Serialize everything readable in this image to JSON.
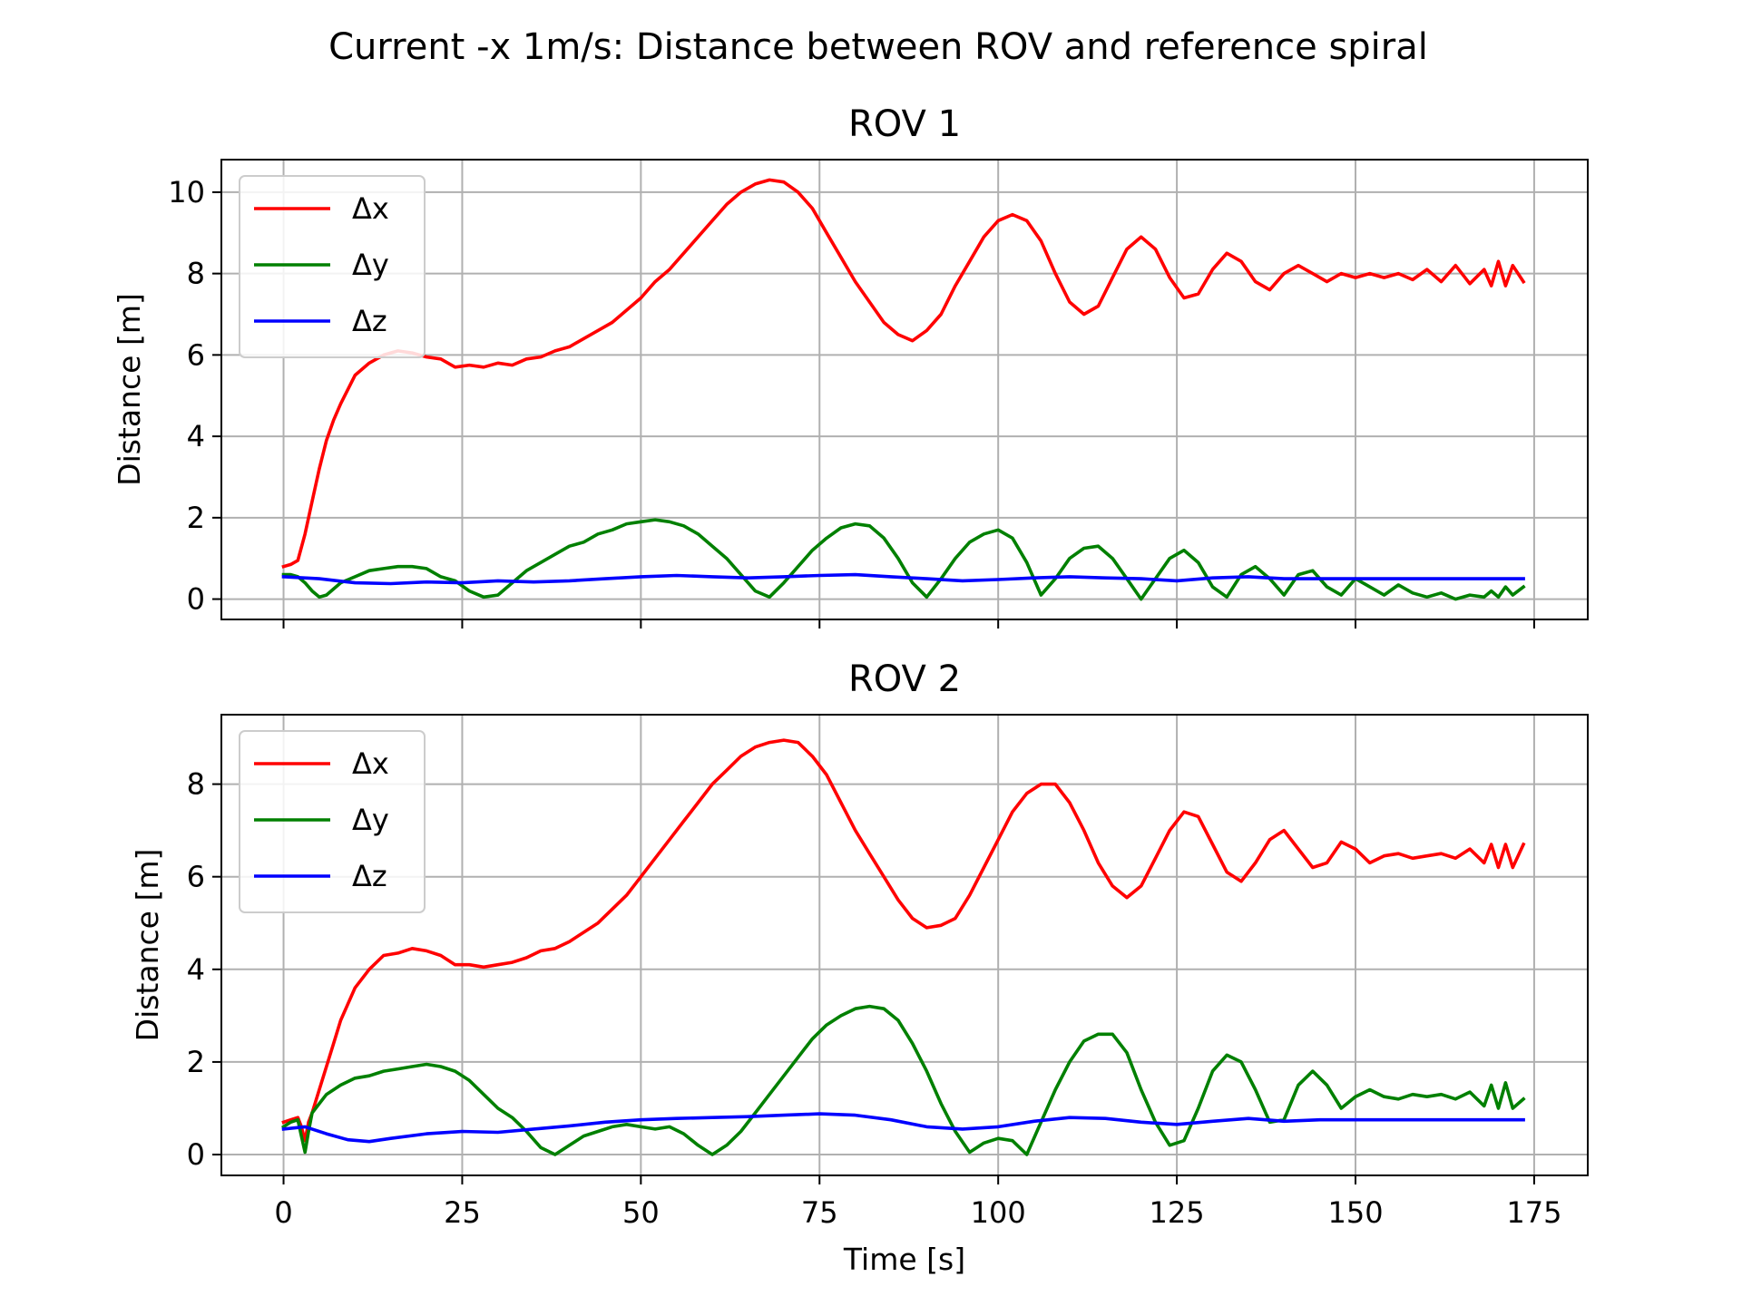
{
  "figure": {
    "suptitle": "Current -x 1m/s: Distance between ROV and reference spiral"
  },
  "chart_data": [
    {
      "type": "line",
      "title": "ROV 1",
      "xlabel": "",
      "ylabel": "Distance [m]",
      "xlim": [
        -8.7,
        182.5
      ],
      "ylim": [
        -0.5,
        10.8
      ],
      "xticks": [
        0,
        25,
        50,
        75,
        100,
        125,
        150,
        175
      ],
      "xtick_labels_visible": false,
      "yticks": [
        0,
        2,
        4,
        6,
        8,
        10
      ],
      "grid": true,
      "legend": "top-left",
      "series": [
        {
          "name": "Δx",
          "color": "#ff0000",
          "x": [
            0,
            1,
            2,
            3,
            4,
            5,
            6,
            7,
            8,
            10,
            12,
            14,
            16,
            18,
            20,
            22,
            24,
            26,
            28,
            30,
            32,
            34,
            36,
            38,
            40,
            42,
            44,
            46,
            48,
            50,
            52,
            54,
            56,
            58,
            60,
            62,
            64,
            66,
            68,
            70,
            72,
            74,
            76,
            78,
            80,
            82,
            84,
            86,
            88,
            90,
            92,
            94,
            96,
            98,
            100,
            102,
            104,
            106,
            108,
            110,
            112,
            114,
            116,
            118,
            120,
            122,
            124,
            126,
            128,
            130,
            132,
            134,
            136,
            138,
            140,
            142,
            144,
            146,
            148,
            150,
            152,
            154,
            156,
            158,
            160,
            162,
            164,
            166,
            168,
            169,
            170,
            171,
            172,
            173.5
          ],
          "values": [
            0.8,
            0.85,
            0.95,
            1.6,
            2.4,
            3.2,
            3.9,
            4.4,
            4.8,
            5.5,
            5.8,
            6.0,
            6.1,
            6.05,
            5.95,
            5.9,
            5.7,
            5.75,
            5.7,
            5.8,
            5.75,
            5.9,
            5.95,
            6.1,
            6.2,
            6.4,
            6.6,
            6.8,
            7.1,
            7.4,
            7.8,
            8.1,
            8.5,
            8.9,
            9.3,
            9.7,
            10.0,
            10.2,
            10.3,
            10.25,
            10.0,
            9.6,
            9.0,
            8.4,
            7.8,
            7.3,
            6.8,
            6.5,
            6.35,
            6.6,
            7.0,
            7.7,
            8.3,
            8.9,
            9.3,
            9.45,
            9.3,
            8.8,
            8.0,
            7.3,
            7.0,
            7.2,
            7.9,
            8.6,
            8.9,
            8.6,
            7.9,
            7.4,
            7.5,
            8.1,
            8.5,
            8.3,
            7.8,
            7.6,
            8.0,
            8.2,
            8.0,
            7.8,
            8.0,
            7.9,
            8.0,
            7.9,
            8.0,
            7.85,
            8.1,
            7.8,
            8.2,
            7.75,
            8.1,
            7.7,
            8.3,
            7.7,
            8.2,
            7.8
          ]
        },
        {
          "name": "Δy",
          "color": "#008000",
          "x": [
            0,
            1,
            2,
            3,
            4,
            5,
            6,
            8,
            10,
            12,
            14,
            16,
            18,
            20,
            22,
            24,
            26,
            28,
            30,
            32,
            34,
            36,
            38,
            40,
            42,
            44,
            46,
            48,
            50,
            52,
            54,
            56,
            58,
            60,
            62,
            64,
            66,
            68,
            70,
            72,
            74,
            76,
            78,
            80,
            82,
            84,
            86,
            88,
            90,
            92,
            94,
            96,
            98,
            100,
            102,
            104,
            106,
            108,
            110,
            112,
            114,
            116,
            118,
            120,
            122,
            124,
            126,
            128,
            130,
            132,
            134,
            136,
            138,
            140,
            142,
            144,
            146,
            148,
            150,
            152,
            154,
            156,
            158,
            160,
            162,
            164,
            166,
            168,
            169,
            170,
            171,
            172,
            173.5
          ],
          "values": [
            0.6,
            0.6,
            0.55,
            0.4,
            0.2,
            0.05,
            0.1,
            0.4,
            0.55,
            0.7,
            0.75,
            0.8,
            0.8,
            0.75,
            0.55,
            0.45,
            0.2,
            0.05,
            0.1,
            0.4,
            0.7,
            0.9,
            1.1,
            1.3,
            1.4,
            1.6,
            1.7,
            1.85,
            1.9,
            1.95,
            1.9,
            1.8,
            1.6,
            1.3,
            1.0,
            0.6,
            0.2,
            0.05,
            0.4,
            0.8,
            1.2,
            1.5,
            1.75,
            1.85,
            1.8,
            1.5,
            1.0,
            0.4,
            0.05,
            0.5,
            1.0,
            1.4,
            1.6,
            1.7,
            1.5,
            0.9,
            0.1,
            0.5,
            1.0,
            1.25,
            1.3,
            1.0,
            0.5,
            0.0,
            0.5,
            1.0,
            1.2,
            0.9,
            0.3,
            0.05,
            0.6,
            0.8,
            0.5,
            0.1,
            0.6,
            0.7,
            0.3,
            0.1,
            0.5,
            0.3,
            0.1,
            0.35,
            0.15,
            0.05,
            0.15,
            0.0,
            0.1,
            0.05,
            0.2,
            0.05,
            0.3,
            0.1,
            0.3
          ]
        },
        {
          "name": "Δz",
          "color": "#0000ff",
          "x": [
            0,
            5,
            10,
            15,
            20,
            25,
            30,
            35,
            40,
            45,
            50,
            55,
            60,
            65,
            70,
            75,
            80,
            85,
            90,
            95,
            100,
            105,
            110,
            115,
            120,
            125,
            130,
            135,
            140,
            145,
            150,
            155,
            160,
            165,
            170,
            173.5
          ],
          "values": [
            0.55,
            0.5,
            0.4,
            0.38,
            0.42,
            0.4,
            0.45,
            0.42,
            0.45,
            0.5,
            0.55,
            0.58,
            0.55,
            0.52,
            0.55,
            0.58,
            0.6,
            0.55,
            0.5,
            0.45,
            0.48,
            0.52,
            0.55,
            0.52,
            0.5,
            0.45,
            0.52,
            0.55,
            0.5,
            0.5,
            0.5,
            0.5,
            0.5,
            0.5,
            0.5,
            0.5
          ]
        }
      ]
    },
    {
      "type": "line",
      "title": "ROV 2",
      "xlabel": "Time [s]",
      "ylabel": "Distance [m]",
      "xlim": [
        -8.7,
        182.5
      ],
      "ylim": [
        -0.45,
        9.5
      ],
      "xticks": [
        0,
        25,
        50,
        75,
        100,
        125,
        150,
        175
      ],
      "xtick_labels_visible": true,
      "yticks": [
        0,
        2,
        4,
        6,
        8
      ],
      "grid": true,
      "legend": "top-left",
      "series": [
        {
          "name": "Δx",
          "color": "#ff0000",
          "x": [
            0,
            1,
            2,
            2.5,
            3,
            3.5,
            4,
            5,
            6,
            7,
            8,
            10,
            12,
            14,
            16,
            18,
            20,
            22,
            24,
            26,
            28,
            30,
            32,
            34,
            36,
            38,
            40,
            42,
            44,
            46,
            48,
            50,
            52,
            54,
            56,
            58,
            60,
            62,
            64,
            66,
            68,
            70,
            72,
            74,
            76,
            78,
            80,
            82,
            84,
            86,
            88,
            90,
            92,
            94,
            96,
            98,
            100,
            102,
            104,
            106,
            108,
            110,
            112,
            114,
            116,
            118,
            120,
            122,
            124,
            126,
            128,
            130,
            132,
            134,
            136,
            138,
            140,
            142,
            144,
            146,
            148,
            150,
            152,
            154,
            156,
            158,
            160,
            162,
            164,
            166,
            168,
            169,
            170,
            171,
            172,
            173.5
          ],
          "values": [
            0.7,
            0.75,
            0.8,
            0.6,
            0.3,
            0.7,
            0.9,
            1.4,
            1.9,
            2.4,
            2.9,
            3.6,
            4.0,
            4.3,
            4.35,
            4.45,
            4.4,
            4.3,
            4.1,
            4.1,
            4.05,
            4.1,
            4.15,
            4.25,
            4.4,
            4.45,
            4.6,
            4.8,
            5.0,
            5.3,
            5.6,
            6.0,
            6.4,
            6.8,
            7.2,
            7.6,
            8.0,
            8.3,
            8.6,
            8.8,
            8.9,
            8.95,
            8.9,
            8.6,
            8.2,
            7.6,
            7.0,
            6.5,
            6.0,
            5.5,
            5.1,
            4.9,
            4.95,
            5.1,
            5.6,
            6.2,
            6.8,
            7.4,
            7.8,
            8.0,
            8.0,
            7.6,
            7.0,
            6.3,
            5.8,
            5.55,
            5.8,
            6.4,
            7.0,
            7.4,
            7.3,
            6.7,
            6.1,
            5.9,
            6.3,
            6.8,
            7.0,
            6.6,
            6.2,
            6.3,
            6.75,
            6.6,
            6.3,
            6.45,
            6.5,
            6.4,
            6.45,
            6.5,
            6.4,
            6.6,
            6.3,
            6.7,
            6.2,
            6.7,
            6.2,
            6.7
          ]
        },
        {
          "name": "Δy",
          "color": "#008000",
          "x": [
            0,
            1,
            2,
            2.5,
            3,
            3.5,
            4,
            5,
            6,
            8,
            10,
            12,
            14,
            16,
            18,
            20,
            22,
            24,
            26,
            28,
            30,
            32,
            34,
            36,
            38,
            40,
            42,
            44,
            46,
            48,
            50,
            52,
            54,
            56,
            58,
            60,
            62,
            64,
            66,
            68,
            70,
            72,
            74,
            76,
            78,
            80,
            82,
            84,
            86,
            88,
            90,
            92,
            94,
            96,
            98,
            100,
            102,
            104,
            106,
            108,
            110,
            112,
            114,
            116,
            118,
            120,
            122,
            124,
            126,
            128,
            130,
            132,
            134,
            136,
            138,
            140,
            142,
            144,
            146,
            148,
            150,
            152,
            154,
            156,
            158,
            160,
            162,
            164,
            166,
            168,
            169,
            170,
            171,
            172,
            173.5
          ],
          "values": [
            0.6,
            0.7,
            0.75,
            0.4,
            0.05,
            0.5,
            0.9,
            1.1,
            1.3,
            1.5,
            1.65,
            1.7,
            1.8,
            1.85,
            1.9,
            1.95,
            1.9,
            1.8,
            1.6,
            1.3,
            1.0,
            0.8,
            0.5,
            0.15,
            0.0,
            0.2,
            0.4,
            0.5,
            0.6,
            0.65,
            0.6,
            0.55,
            0.6,
            0.45,
            0.2,
            0.0,
            0.2,
            0.5,
            0.9,
            1.3,
            1.7,
            2.1,
            2.5,
            2.8,
            3.0,
            3.15,
            3.2,
            3.15,
            2.9,
            2.4,
            1.8,
            1.1,
            0.5,
            0.05,
            0.25,
            0.35,
            0.3,
            0.0,
            0.7,
            1.4,
            2.0,
            2.45,
            2.6,
            2.6,
            2.2,
            1.4,
            0.7,
            0.2,
            0.3,
            1.0,
            1.8,
            2.15,
            2.0,
            1.4,
            0.7,
            0.75,
            1.5,
            1.8,
            1.5,
            1.0,
            1.25,
            1.4,
            1.25,
            1.2,
            1.3,
            1.25,
            1.3,
            1.2,
            1.35,
            1.05,
            1.5,
            1.0,
            1.55,
            1.0,
            1.2
          ]
        },
        {
          "name": "Δz",
          "color": "#0000ff",
          "x": [
            0,
            3,
            6,
            9,
            12,
            15,
            20,
            25,
            30,
            35,
            40,
            45,
            50,
            55,
            60,
            65,
            70,
            75,
            80,
            85,
            90,
            95,
            100,
            105,
            110,
            115,
            120,
            125,
            130,
            135,
            140,
            145,
            150,
            155,
            160,
            165,
            170,
            173.5
          ],
          "values": [
            0.55,
            0.6,
            0.45,
            0.32,
            0.28,
            0.35,
            0.45,
            0.5,
            0.48,
            0.55,
            0.62,
            0.7,
            0.75,
            0.78,
            0.8,
            0.82,
            0.85,
            0.88,
            0.85,
            0.75,
            0.6,
            0.55,
            0.6,
            0.72,
            0.8,
            0.78,
            0.7,
            0.65,
            0.72,
            0.78,
            0.72,
            0.75,
            0.75,
            0.75,
            0.75,
            0.75,
            0.75,
            0.75
          ]
        }
      ]
    }
  ]
}
